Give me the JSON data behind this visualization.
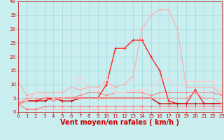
{
  "xlabel": "Vent moyen/en rafales ( km/h )",
  "xlim": [
    0,
    23
  ],
  "ylim": [
    0,
    40
  ],
  "yticks": [
    0,
    5,
    10,
    15,
    20,
    25,
    30,
    35,
    40
  ],
  "xticks": [
    0,
    1,
    2,
    3,
    4,
    5,
    6,
    7,
    8,
    9,
    10,
    11,
    12,
    13,
    14,
    15,
    16,
    17,
    18,
    19,
    20,
    21,
    22,
    23
  ],
  "bg_color": "#c8eef0",
  "grid_color": "#a0d8dc",
  "series": [
    {
      "color": "#ffaaaa",
      "lw": 0.8,
      "marker": "+",
      "ms": 3,
      "data": [
        [
          0,
          11
        ],
        [
          1,
          6
        ],
        [
          2,
          7
        ],
        [
          3,
          7
        ],
        [
          4,
          7
        ],
        [
          5,
          7
        ],
        [
          6,
          9
        ],
        [
          7,
          8
        ],
        [
          8,
          9
        ],
        [
          9,
          9
        ],
        [
          10,
          11
        ],
        [
          11,
          9
        ],
        [
          12,
          10
        ],
        [
          13,
          13
        ],
        [
          14,
          30
        ],
        [
          15,
          35
        ],
        [
          16,
          37
        ],
        [
          17,
          37
        ],
        [
          18,
          30
        ],
        [
          19,
          9
        ],
        [
          20,
          9
        ],
        [
          21,
          9
        ],
        [
          22,
          9
        ],
        [
          23,
          6
        ]
      ]
    },
    {
      "color": "#ff8888",
      "lw": 0.8,
      "marker": "+",
      "ms": 3,
      "data": [
        [
          0,
          3
        ],
        [
          1,
          4
        ],
        [
          2,
          4
        ],
        [
          3,
          5
        ],
        [
          4,
          5
        ],
        [
          5,
          5
        ],
        [
          6,
          5
        ],
        [
          7,
          6
        ],
        [
          8,
          7
        ],
        [
          9,
          7
        ],
        [
          10,
          6
        ],
        [
          11,
          7
        ],
        [
          12,
          7
        ],
        [
          13,
          7
        ],
        [
          14,
          7
        ],
        [
          15,
          6
        ],
        [
          16,
          7
        ],
        [
          17,
          7
        ],
        [
          18,
          7
        ],
        [
          19,
          7
        ],
        [
          20,
          7
        ],
        [
          21,
          7
        ],
        [
          22,
          7
        ],
        [
          23,
          6
        ]
      ]
    },
    {
      "color": "#ff2222",
      "lw": 1.0,
      "marker": "+",
      "ms": 3,
      "data": [
        [
          0,
          3
        ],
        [
          1,
          4
        ],
        [
          2,
          4
        ],
        [
          3,
          5
        ],
        [
          4,
          5
        ],
        [
          5,
          5
        ],
        [
          6,
          5
        ],
        [
          7,
          5
        ],
        [
          8,
          5
        ],
        [
          9,
          5
        ],
        [
          10,
          10
        ],
        [
          11,
          23
        ],
        [
          12,
          23
        ],
        [
          13,
          26
        ],
        [
          14,
          26
        ],
        [
          15,
          20
        ],
        [
          16,
          15
        ],
        [
          17,
          4
        ],
        [
          18,
          3
        ],
        [
          19,
          3
        ],
        [
          20,
          8
        ],
        [
          21,
          3
        ],
        [
          22,
          3
        ],
        [
          23,
          3
        ]
      ]
    },
    {
      "color": "#ffbbbb",
      "lw": 0.7,
      "marker": "+",
      "ms": 3,
      "data": [
        [
          0,
          3
        ],
        [
          1,
          1
        ],
        [
          2,
          1
        ],
        [
          3,
          1
        ],
        [
          4,
          1
        ],
        [
          5,
          1
        ],
        [
          6,
          1
        ],
        [
          7,
          1
        ],
        [
          8,
          1
        ],
        [
          9,
          1
        ],
        [
          10,
          1
        ],
        [
          11,
          1
        ],
        [
          12,
          1
        ],
        [
          13,
          1
        ],
        [
          14,
          1
        ],
        [
          15,
          1
        ],
        [
          16,
          1
        ],
        [
          17,
          1
        ],
        [
          18,
          1
        ],
        [
          19,
          1
        ],
        [
          20,
          1
        ],
        [
          21,
          1
        ],
        [
          22,
          1
        ],
        [
          23,
          1
        ]
      ]
    },
    {
      "color": "#cc0000",
      "lw": 1.0,
      "marker": "+",
      "ms": 3,
      "data": [
        [
          0,
          3
        ],
        [
          1,
          4
        ],
        [
          2,
          4
        ],
        [
          3,
          4
        ],
        [
          4,
          5
        ],
        [
          5,
          4
        ],
        [
          6,
          4
        ],
        [
          7,
          5
        ],
        [
          8,
          5
        ],
        [
          9,
          5
        ],
        [
          10,
          5
        ],
        [
          11,
          5
        ],
        [
          12,
          5
        ],
        [
          13,
          5
        ],
        [
          14,
          5
        ],
        [
          15,
          5
        ],
        [
          16,
          3
        ],
        [
          17,
          3
        ],
        [
          18,
          3
        ],
        [
          19,
          3
        ],
        [
          20,
          3
        ],
        [
          21,
          3
        ],
        [
          22,
          3
        ],
        [
          23,
          3
        ]
      ]
    },
    {
      "color": "#ff7777",
      "lw": 0.7,
      "marker": "+",
      "ms": 3,
      "data": [
        [
          0,
          3
        ],
        [
          1,
          1
        ],
        [
          2,
          1
        ],
        [
          3,
          2
        ],
        [
          4,
          2
        ],
        [
          5,
          2
        ],
        [
          6,
          2
        ],
        [
          7,
          2
        ],
        [
          8,
          2
        ],
        [
          9,
          2
        ],
        [
          10,
          2
        ],
        [
          11,
          2
        ],
        [
          12,
          2
        ],
        [
          13,
          2
        ],
        [
          14,
          2
        ],
        [
          15,
          2
        ],
        [
          16,
          2
        ],
        [
          17,
          2
        ],
        [
          18,
          2
        ],
        [
          19,
          2
        ],
        [
          20,
          2
        ],
        [
          21,
          2
        ],
        [
          22,
          2
        ],
        [
          23,
          2
        ]
      ]
    },
    {
      "color": "#ffcccc",
      "lw": 0.8,
      "marker": "+",
      "ms": 3,
      "data": [
        [
          0,
          3
        ],
        [
          1,
          4
        ],
        [
          2,
          7
        ],
        [
          3,
          6
        ],
        [
          4,
          5
        ],
        [
          5,
          5
        ],
        [
          6,
          6
        ],
        [
          7,
          13
        ],
        [
          8,
          8
        ],
        [
          9,
          8
        ],
        [
          10,
          12
        ],
        [
          11,
          7
        ],
        [
          12,
          7
        ],
        [
          13,
          8
        ],
        [
          14,
          8
        ],
        [
          15,
          8
        ],
        [
          16,
          12
        ],
        [
          17,
          12
        ],
        [
          18,
          9
        ],
        [
          19,
          11
        ],
        [
          20,
          11
        ],
        [
          21,
          11
        ],
        [
          22,
          11
        ],
        [
          23,
          7
        ]
      ]
    },
    {
      "color": "#ff9999",
      "lw": 0.8,
      "marker": "+",
      "ms": 3,
      "data": [
        [
          0,
          3
        ],
        [
          1,
          5
        ],
        [
          2,
          5
        ],
        [
          3,
          5
        ],
        [
          4,
          4
        ],
        [
          5,
          5
        ],
        [
          6,
          5
        ],
        [
          7,
          5
        ],
        [
          8,
          5
        ],
        [
          9,
          5
        ],
        [
          10,
          5
        ],
        [
          11,
          5
        ],
        [
          12,
          5
        ],
        [
          13,
          5
        ],
        [
          14,
          5
        ],
        [
          15,
          5
        ],
        [
          16,
          5
        ],
        [
          17,
          5
        ],
        [
          18,
          5
        ],
        [
          19,
          5
        ],
        [
          20,
          7
        ],
        [
          21,
          5
        ],
        [
          22,
          5
        ],
        [
          23,
          3
        ]
      ]
    }
  ],
  "font_color": "#cc0000",
  "tick_font_size": 5,
  "xlabel_font_size": 7
}
